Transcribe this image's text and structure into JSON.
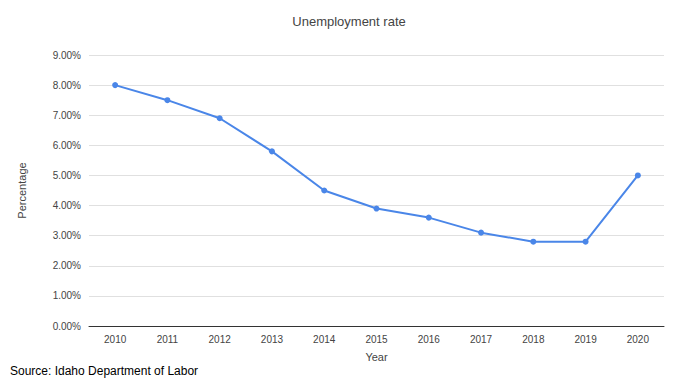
{
  "chart_data": {
    "type": "line",
    "title": "Unemployment rate",
    "xlabel": "Year",
    "ylabel": "Percentage",
    "source": "Source: Idaho Department of Labor",
    "categories": [
      "2010",
      "2011",
      "2012",
      "2013",
      "2014",
      "2015",
      "2016",
      "2017",
      "2018",
      "2019",
      "2020"
    ],
    "values": [
      8.0,
      7.5,
      6.9,
      5.8,
      4.5,
      3.9,
      3.6,
      3.1,
      2.8,
      2.8,
      5.0
    ],
    "color": "#4a86e8",
    "marker": "circle",
    "ylim": [
      0,
      9
    ],
    "yticks": [
      {
        "value": 0,
        "label": "0.00%"
      },
      {
        "value": 1,
        "label": "1.00%"
      },
      {
        "value": 2,
        "label": "2.00%"
      },
      {
        "value": 3,
        "label": "3.00%"
      },
      {
        "value": 4,
        "label": "4.00%"
      },
      {
        "value": 5,
        "label": "5.00%"
      },
      {
        "value": 6,
        "label": "6.00%"
      },
      {
        "value": 7,
        "label": "7.00%"
      },
      {
        "value": 8,
        "label": "8.00%"
      },
      {
        "value": 9,
        "label": "9.00%"
      }
    ],
    "grid": true
  }
}
